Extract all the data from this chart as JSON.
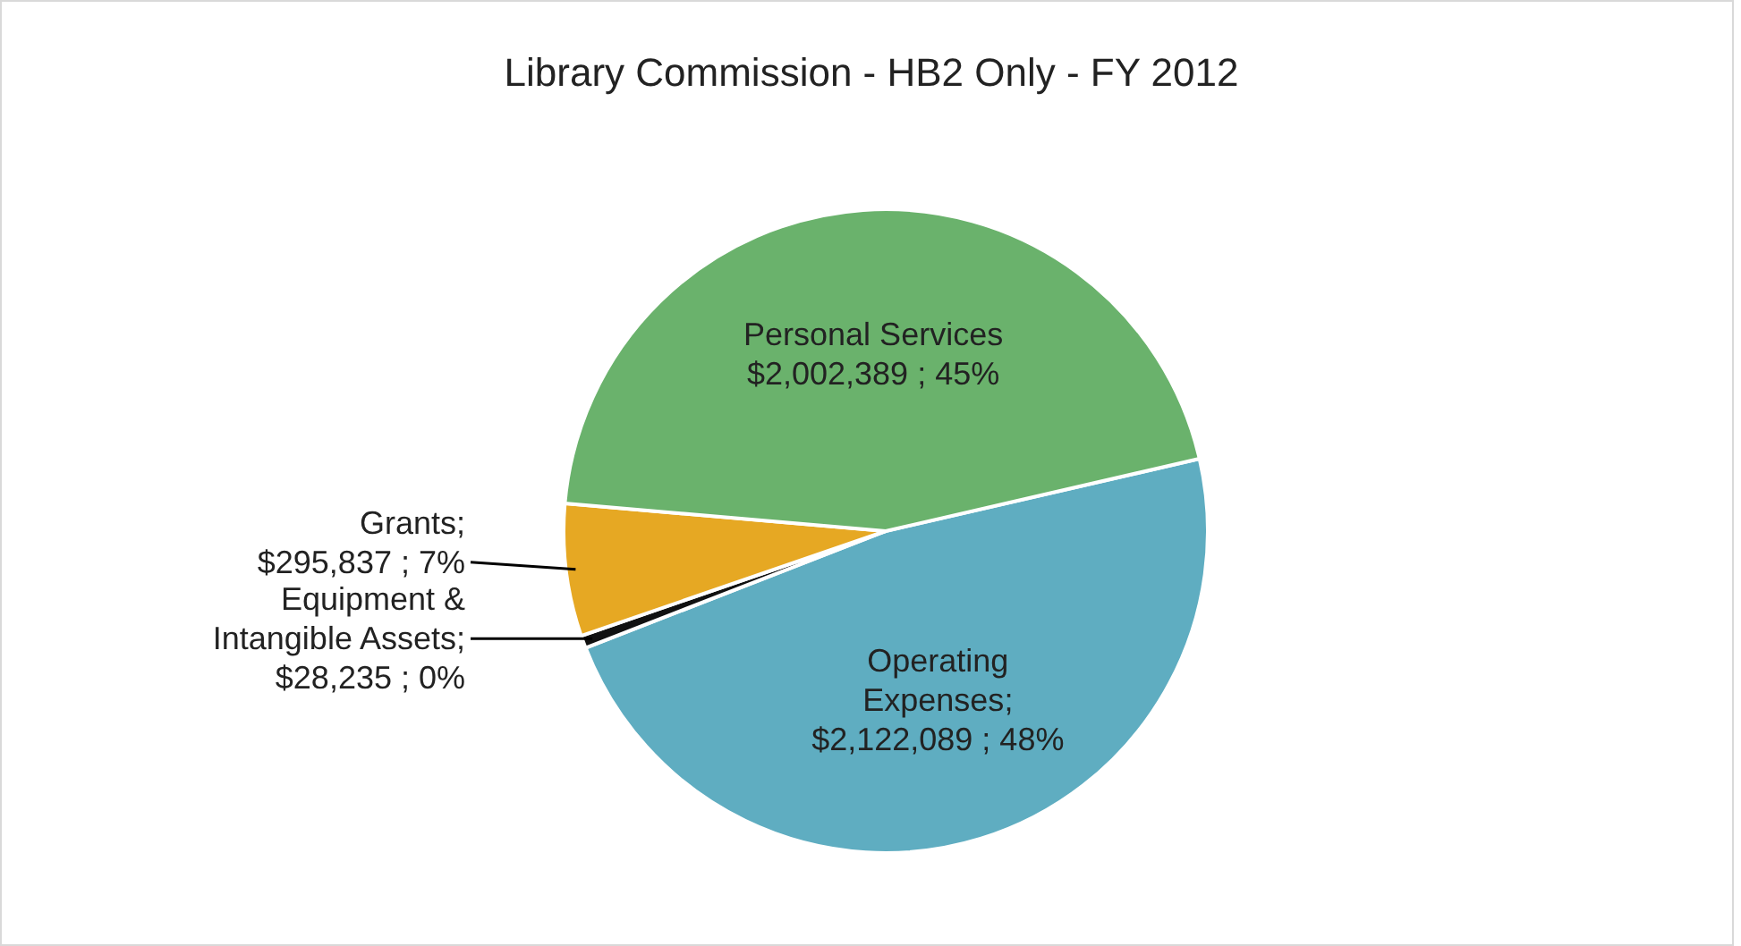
{
  "chart_data": {
    "type": "pie",
    "title": "Library Commission - HB2 Only - FY 2012",
    "categories": [
      "Operating Expenses",
      "Equipment & Intangible Assets",
      "Grants",
      "Personal Services"
    ],
    "values": [
      2122089,
      28235,
      295837,
      2002389
    ],
    "colors": [
      "#5fadc1",
      "#111111",
      "#e6a823",
      "#6ab26c"
    ],
    "value_labels": [
      ";$2,122,089 ; 48%",
      ";$28,235 ; 0%",
      ";$295,837 ; 7%",
      "$2,002,389 ; 45%"
    ],
    "legend": false
  }
}
